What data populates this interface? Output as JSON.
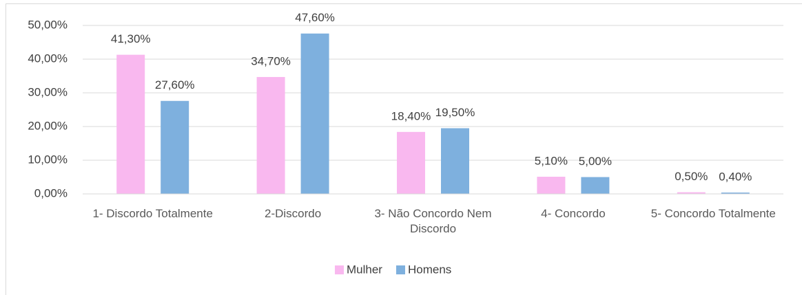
{
  "chart_data": {
    "type": "bar",
    "categories": [
      "1- Discordo Totalmente",
      "2-Discordo",
      "3- Não Concordo Nem Discordo",
      "4- Concordo",
      "5- Concordo Totalmente"
    ],
    "series": [
      {
        "name": "Mulher",
        "color": "#f9b8ef",
        "values": [
          41.3,
          34.7,
          18.4,
          5.1,
          0.5
        ],
        "value_labels": [
          "41,30%",
          "34,70%",
          "18,40%",
          "5,10%",
          "0,50%"
        ]
      },
      {
        "name": "Homens",
        "color": "#7eb0de",
        "values": [
          27.6,
          47.6,
          19.5,
          5.0,
          0.4
        ],
        "value_labels": [
          "27,60%",
          "47,60%",
          "19,50%",
          "5,00%",
          "0,40%"
        ]
      }
    ],
    "ylim": [
      0,
      50
    ],
    "yticks": [
      {
        "value": 0,
        "label": "0,00%"
      },
      {
        "value": 10,
        "label": "10,00%"
      },
      {
        "value": 20,
        "label": "20,00%"
      },
      {
        "value": 30,
        "label": "30,00%"
      },
      {
        "value": 40,
        "label": "40,00%"
      },
      {
        "value": 50,
        "label": "50,00%"
      }
    ],
    "grid": true,
    "legend": "bottom"
  }
}
